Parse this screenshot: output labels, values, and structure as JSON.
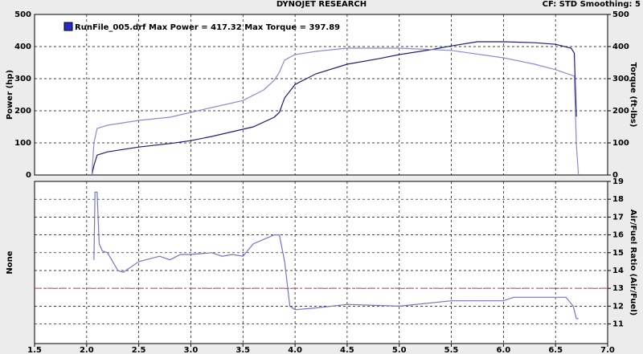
{
  "chart_data": [
    {
      "type": "line",
      "title": "DYNOJET RESEARCH",
      "subtitle": "CF: STD  Smoothing: 5",
      "legend": "RunFile_005.drf Max Power = 417.32 Max Torque = 397.89",
      "ylabel": "Power (hp)",
      "y2label": "Torque (ft-lbs)",
      "xlim": [
        1.5,
        7.0
      ],
      "xticks": [
        1.5,
        2,
        2.5,
        3,
        3.5,
        4,
        4.5,
        5,
        5.5,
        6,
        6.5,
        7
      ],
      "ylim": [
        0,
        500
      ],
      "yticks": [
        0,
        100,
        200,
        300,
        400,
        500
      ],
      "y2lim": [
        0,
        500
      ],
      "y2ticks": [
        0,
        100,
        200,
        300,
        400,
        500
      ],
      "grid": true,
      "series": [
        {
          "color": "#1c1c7a",
          "x": [
            2.05,
            2.07,
            2.1,
            2.2,
            2.5,
            2.8,
            3.0,
            3.2,
            3.4,
            3.6,
            3.8,
            3.85,
            3.9,
            4.0,
            4.2,
            4.5,
            4.8,
            5.0,
            5.3,
            5.5,
            5.75,
            6.0,
            6.3,
            6.5,
            6.65,
            6.68,
            6.7
          ],
          "values": [
            0,
            30,
            62,
            72,
            87,
            98,
            107,
            120,
            135,
            150,
            180,
            195,
            240,
            282,
            315,
            345,
            362,
            375,
            390,
            402,
            415,
            415,
            412,
            407,
            395,
            380,
            182
          ]
        },
        {
          "color": "#8a8ad8",
          "axis": "y2",
          "x": [
            2.05,
            2.07,
            2.1,
            2.2,
            2.5,
            2.8,
            3.0,
            3.2,
            3.5,
            3.7,
            3.8,
            3.85,
            3.9,
            4.0,
            4.2,
            4.5,
            5.0,
            5.5,
            6.0,
            6.3,
            6.5,
            6.68,
            6.7,
            6.72
          ],
          "values": [
            0,
            100,
            145,
            155,
            170,
            180,
            195,
            210,
            232,
            265,
            295,
            320,
            358,
            375,
            385,
            395,
            395,
            388,
            365,
            345,
            328,
            308,
            95,
            0
          ]
        }
      ]
    },
    {
      "type": "line",
      "ylabel": "None",
      "y2label": "Air/Fuel Ratio (Air/Fuel)",
      "xlim": [
        1.5,
        7.0
      ],
      "xticks": [
        1.5,
        {
          "value": 2,
          "label": "2.0"
        },
        2.5,
        {
          "value": 3,
          "label": "3.0"
        },
        3.5,
        {
          "value": 4,
          "label": "4.0"
        },
        4.5,
        {
          "value": 5,
          "label": "5.0"
        },
        5.5,
        {
          "value": 6,
          "label": "6.0"
        },
        6.5,
        {
          "value": 7,
          "label": "7.0"
        }
      ],
      "y2lim": [
        9.9,
        19
      ],
      "y2ticks": [
        11,
        12,
        13,
        14,
        15,
        16,
        17,
        18,
        19
      ],
      "grid": true,
      "reference_line": {
        "value": 13,
        "color": "#d83030"
      },
      "series": [
        {
          "color": "#7474cc",
          "axis": "y2",
          "x": [
            2.07,
            2.08,
            2.1,
            2.12,
            2.15,
            2.2,
            2.3,
            2.35,
            2.5,
            2.7,
            2.8,
            2.9,
            3.0,
            3.2,
            3.3,
            3.4,
            3.5,
            3.6,
            3.8,
            3.85,
            3.9,
            3.95,
            4.0,
            4.2,
            4.5,
            5.0,
            5.5,
            6.0,
            6.1,
            6.5,
            6.6,
            6.67,
            6.7,
            6.72
          ],
          "values": [
            14.6,
            18.4,
            18.4,
            15.5,
            15.1,
            15.0,
            14.0,
            13.9,
            14.5,
            14.8,
            14.6,
            14.9,
            14.9,
            15.0,
            14.8,
            14.9,
            14.8,
            15.5,
            16.0,
            16.0,
            14.5,
            12.0,
            11.8,
            11.9,
            12.1,
            12.0,
            12.3,
            12.3,
            12.5,
            12.5,
            12.5,
            12.0,
            11.3,
            11.3
          ]
        }
      ]
    }
  ]
}
